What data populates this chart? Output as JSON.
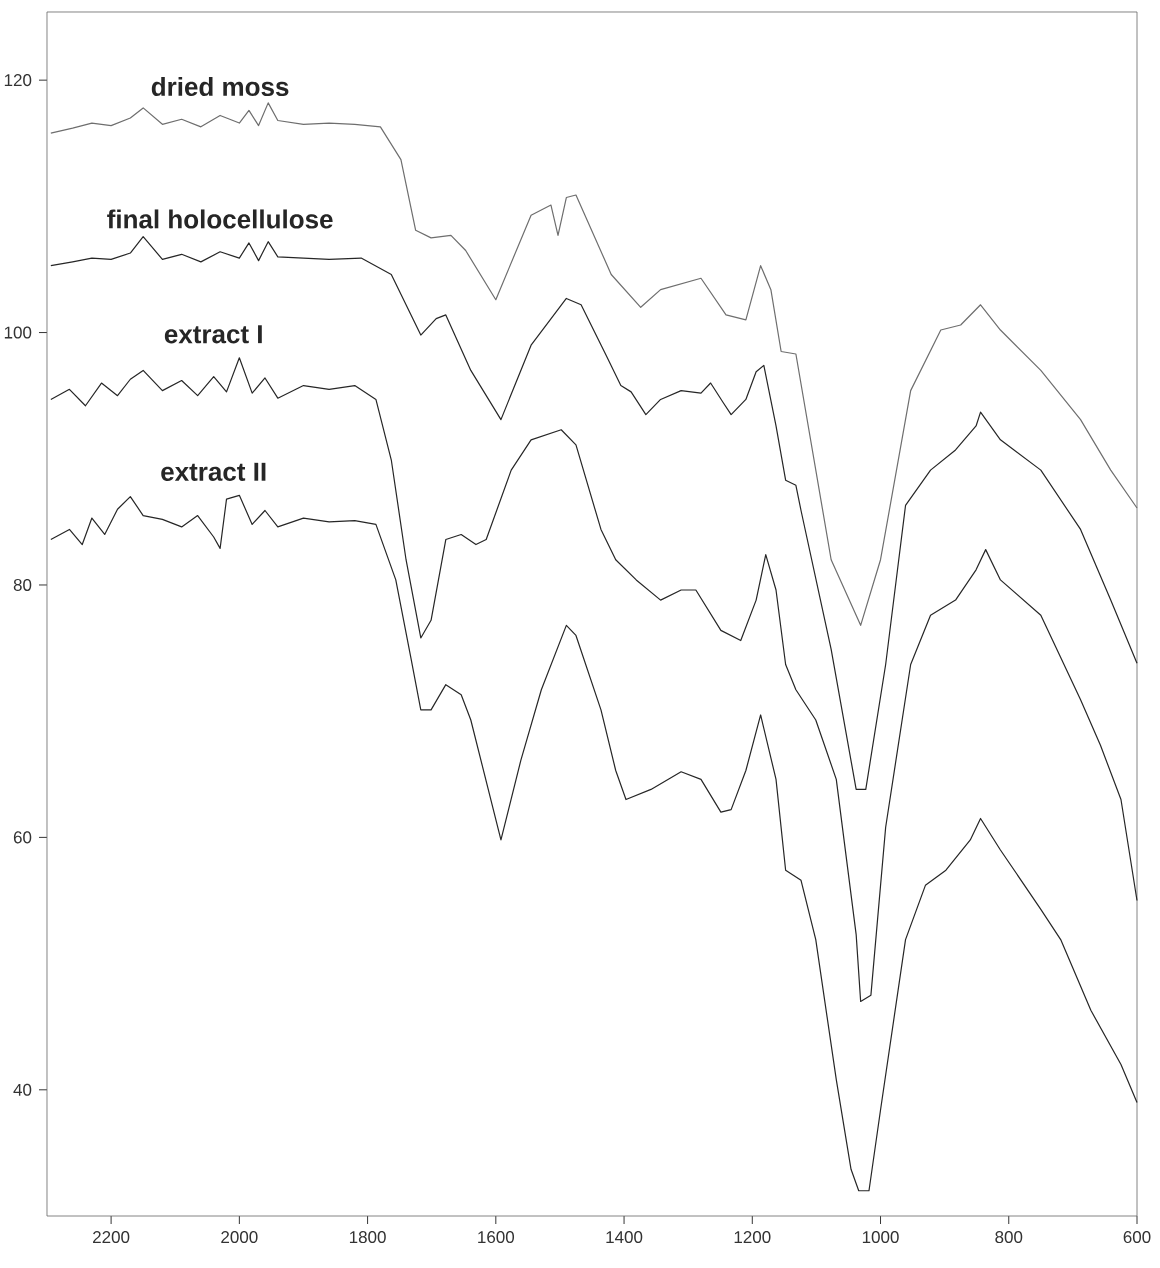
{
  "chart_data": {
    "type": "line",
    "xlim": [
      2300,
      600
    ],
    "ylim": [
      30,
      125.4
    ],
    "xticks": [
      2200,
      2000,
      1800,
      1600,
      1400,
      1200,
      1000,
      800,
      600
    ],
    "yticks": [
      40,
      60,
      80,
      100,
      120
    ],
    "grid": false,
    "legend": false,
    "marker": "none",
    "line_style": "solid",
    "series": [
      {
        "name": "dried moss",
        "color": "#6e6e6e",
        "x": [
          2294,
          2260,
          2230,
          2200,
          2170,
          2150,
          2120,
          2090,
          2060,
          2030,
          2000,
          1985,
          1970,
          1955,
          1940,
          1900,
          1860,
          1820,
          1780,
          1748,
          1725,
          1701,
          1670,
          1647,
          1600,
          1545,
          1514,
          1503,
          1490,
          1475,
          1420,
          1374,
          1343,
          1280,
          1241,
          1210,
          1187,
          1171,
          1155,
          1132,
          1077,
          1031,
          1000,
          953,
          906,
          875,
          844,
          813,
          750,
          688,
          641,
          600
        ],
        "values": [
          115.8,
          116.2,
          116.6,
          116.4,
          117.0,
          117.8,
          116.5,
          116.9,
          116.3,
          117.2,
          116.6,
          117.6,
          116.4,
          118.2,
          116.8,
          116.5,
          116.6,
          116.5,
          116.3,
          113.7,
          108.1,
          107.5,
          107.7,
          106.5,
          102.6,
          109.3,
          110.1,
          107.7,
          110.7,
          110.9,
          104.6,
          102.0,
          103.4,
          104.3,
          101.4,
          101.0,
          105.3,
          103.4,
          98.5,
          98.3,
          82.0,
          76.8,
          82.0,
          95.4,
          100.2,
          100.6,
          102.2,
          100.2,
          97.0,
          93.1,
          89.1,
          86.1
        ]
      },
      {
        "name": "final holocellulose",
        "color": "#262626",
        "x": [
          2294,
          2260,
          2230,
          2200,
          2170,
          2150,
          2120,
          2090,
          2060,
          2030,
          2000,
          1985,
          1970,
          1955,
          1940,
          1900,
          1860,
          1810,
          1763,
          1717,
          1693,
          1678,
          1639,
          1592,
          1545,
          1490,
          1467,
          1428,
          1405,
          1389,
          1366,
          1343,
          1311,
          1280,
          1265,
          1246,
          1233,
          1210,
          1194,
          1182,
          1163,
          1148,
          1132,
          1124,
          1077,
          1038,
          1023,
          992,
          961,
          922,
          883,
          851,
          844,
          813,
          750,
          688,
          641,
          600
        ],
        "values": [
          105.3,
          105.6,
          105.9,
          105.8,
          106.3,
          107.6,
          105.8,
          106.2,
          105.6,
          106.4,
          105.9,
          107.1,
          105.7,
          107.2,
          106.0,
          105.9,
          105.8,
          105.9,
          104.6,
          99.8,
          101.1,
          101.4,
          97.0,
          93.1,
          99.0,
          102.7,
          102.2,
          98.2,
          95.8,
          95.3,
          93.5,
          94.7,
          95.4,
          95.2,
          96.0,
          94.5,
          93.5,
          94.7,
          96.9,
          97.4,
          92.6,
          88.3,
          87.9,
          85.9,
          74.9,
          63.8,
          63.8,
          73.7,
          86.3,
          89.1,
          90.7,
          92.6,
          93.7,
          91.5,
          89.1,
          84.4,
          78.8,
          73.8
        ]
      },
      {
        "name": "extract I",
        "color": "#262626",
        "x": [
          2294,
          2265,
          2240,
          2215,
          2190,
          2170,
          2150,
          2120,
          2090,
          2065,
          2040,
          2020,
          2000,
          1980,
          1960,
          1940,
          1900,
          1860,
          1820,
          1787,
          1763,
          1740,
          1717,
          1701,
          1678,
          1654,
          1631,
          1615,
          1576,
          1545,
          1498,
          1475,
          1436,
          1413,
          1381,
          1343,
          1311,
          1288,
          1249,
          1218,
          1194,
          1179,
          1163,
          1148,
          1132,
          1101,
          1069,
          1038,
          1031,
          1015,
          992,
          953,
          922,
          883,
          851,
          836,
          813,
          750,
          688,
          657,
          625,
          600
        ],
        "values": [
          94.7,
          95.5,
          94.2,
          96.0,
          95.0,
          96.3,
          97.0,
          95.4,
          96.2,
          95.0,
          96.5,
          95.3,
          98.0,
          95.2,
          96.4,
          94.8,
          95.8,
          95.5,
          95.8,
          94.7,
          89.9,
          82.0,
          75.8,
          77.2,
          83.6,
          84.0,
          83.2,
          83.6,
          89.1,
          91.5,
          92.3,
          91.1,
          84.4,
          82.0,
          80.4,
          78.8,
          79.6,
          79.6,
          76.4,
          75.6,
          78.8,
          82.4,
          79.6,
          73.7,
          71.7,
          69.3,
          64.6,
          52.3,
          47.0,
          47.5,
          60.8,
          73.7,
          77.6,
          78.8,
          81.2,
          82.8,
          80.4,
          77.6,
          70.9,
          67.3,
          63.0,
          55.0
        ]
      },
      {
        "name": "extract II",
        "color": "#262626",
        "x": [
          2294,
          2265,
          2245,
          2230,
          2210,
          2190,
          2170,
          2150,
          2120,
          2090,
          2065,
          2040,
          2030,
          2020,
          2000,
          1980,
          1960,
          1940,
          1900,
          1860,
          1820,
          1787,
          1756,
          1732,
          1717,
          1701,
          1678,
          1654,
          1639,
          1592,
          1561,
          1529,
          1490,
          1475,
          1436,
          1413,
          1397,
          1358,
          1311,
          1280,
          1249,
          1233,
          1210,
          1187,
          1163,
          1148,
          1124,
          1101,
          1069,
          1046,
          1034,
          1018,
          1000,
          961,
          930,
          898,
          860,
          844,
          813,
          750,
          719,
          672,
          625,
          600
        ],
        "values": [
          83.6,
          84.4,
          83.2,
          85.3,
          84.0,
          86.0,
          87.0,
          85.5,
          85.2,
          84.6,
          85.5,
          83.8,
          82.9,
          86.8,
          87.1,
          84.8,
          85.9,
          84.6,
          85.3,
          85.0,
          85.1,
          84.8,
          80.4,
          74.1,
          70.1,
          70.1,
          72.1,
          71.3,
          69.3,
          59.8,
          66.1,
          71.7,
          76.8,
          76.0,
          70.1,
          65.3,
          63.0,
          63.8,
          65.2,
          64.6,
          62.0,
          62.2,
          65.3,
          69.7,
          64.6,
          57.4,
          56.6,
          51.9,
          40.8,
          33.7,
          32.0,
          32.0,
          38.4,
          51.9,
          56.2,
          57.4,
          59.8,
          61.5,
          59.0,
          54.3,
          51.9,
          46.3,
          42.0,
          39.0
        ]
      }
    ]
  }
}
